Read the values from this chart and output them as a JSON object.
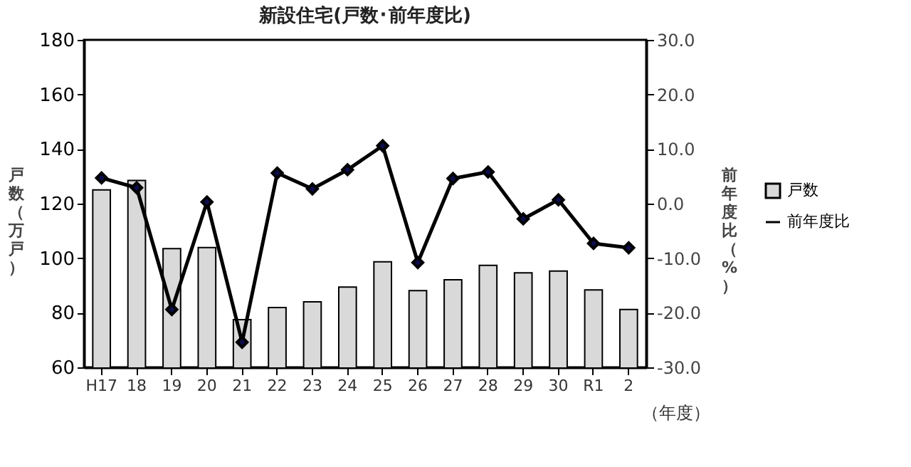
{
  "chart_data": {
    "type": "bar",
    "title": "新設住宅(戸数･前年度比)",
    "xlabel": "（年度）",
    "ylabel": "戸数（万戸）",
    "y2label": "前年度比（%）",
    "categories": [
      "H17",
      "18",
      "19",
      "20",
      "21",
      "22",
      "23",
      "24",
      "25",
      "26",
      "27",
      "28",
      "29",
      "30",
      "R1",
      "2"
    ],
    "series": [
      {
        "name": "戸数",
        "color": "#d9d9d9",
        "values": [
          125.0,
          128.5,
          103.5,
          103.9,
          77.5,
          81.9,
          84.0,
          89.4,
          98.7,
          88.1,
          92.1,
          97.4,
          94.6,
          95.3,
          88.4,
          81.2
        ]
      },
      {
        "name": "前年度比",
        "type": "line",
        "axis": "y2",
        "color": "#000000",
        "marker": "diamond",
        "values": [
          4.7,
          2.9,
          -19.4,
          0.3,
          -25.4,
          5.6,
          2.7,
          6.2,
          10.6,
          -10.8,
          4.6,
          5.8,
          -2.8,
          0.7,
          -7.3,
          -8.1
        ]
      }
    ],
    "ylim": [
      60,
      180
    ],
    "yticks": [
      60,
      80,
      100,
      120,
      140,
      160,
      180
    ],
    "y2lim": [
      -30,
      30
    ],
    "y2ticks": [
      {
        "value": -30,
        "label": "-30.0"
      },
      {
        "value": -20,
        "label": "-20.0"
      },
      {
        "value": -10,
        "label": "-10.0"
      },
      {
        "value": 0,
        "label": "0.0"
      },
      {
        "value": 10,
        "label": "10.0"
      },
      {
        "value": 20,
        "label": "20.0"
      },
      {
        "value": 30,
        "label": "30.0"
      }
    ],
    "grid": false,
    "legend": "right"
  }
}
